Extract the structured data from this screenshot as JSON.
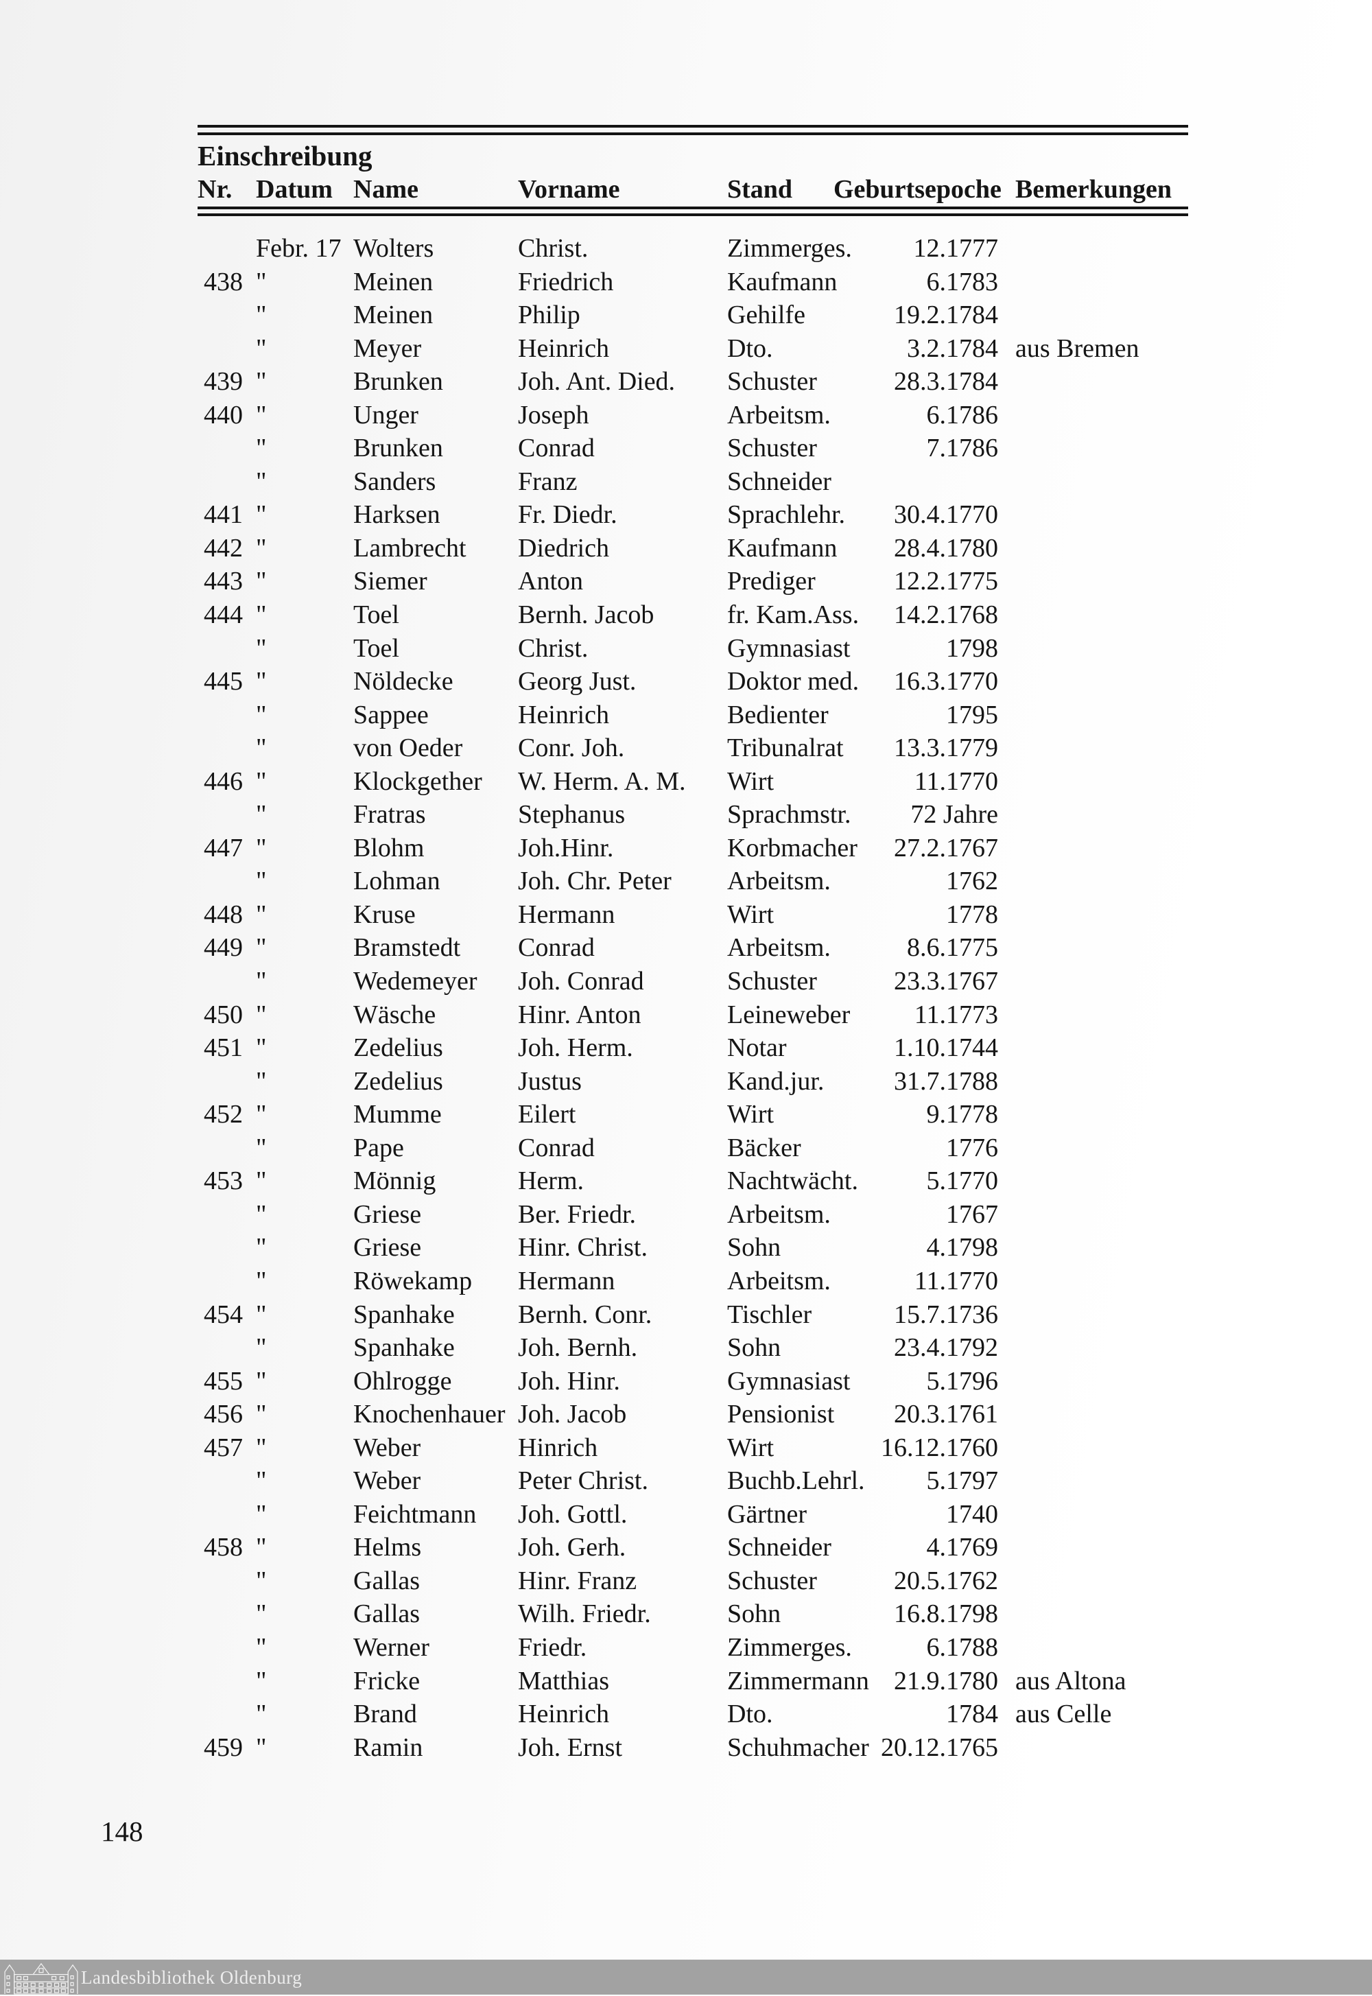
{
  "page": {
    "title": "Einschreibung",
    "page_number": "148",
    "columns": [
      "Nr.",
      "Datum",
      "Name",
      "Vorname",
      "Stand",
      "Geburtsepoche",
      "Bemerkungen"
    ],
    "rows": [
      {
        "nr": "",
        "datum": "Febr. 17",
        "name": "Wolters",
        "vorname": "Christ.",
        "stand": "Zimmerges.",
        "geburtsepoche": "12.1777",
        "bemerkungen": ""
      },
      {
        "nr": "438",
        "datum": "\"",
        "name": "Meinen",
        "vorname": "Friedrich",
        "stand": "Kaufmann",
        "geburtsepoche": "6.1783",
        "bemerkungen": ""
      },
      {
        "nr": "",
        "datum": "\"",
        "name": "Meinen",
        "vorname": "Philip",
        "stand": "Gehilfe",
        "geburtsepoche": "19.2.1784",
        "bemerkungen": ""
      },
      {
        "nr": "",
        "datum": "\"",
        "name": "Meyer",
        "vorname": "Heinrich",
        "stand": "Dto.",
        "geburtsepoche": "3.2.1784",
        "bemerkungen": "aus Bremen"
      },
      {
        "nr": "439",
        "datum": "\"",
        "name": "Brunken",
        "vorname": "Joh. Ant. Died.",
        "stand": "Schuster",
        "geburtsepoche": "28.3.1784",
        "bemerkungen": ""
      },
      {
        "nr": "440",
        "datum": "\"",
        "name": "Unger",
        "vorname": "Joseph",
        "stand": "Arbeitsm.",
        "geburtsepoche": "6.1786",
        "bemerkungen": ""
      },
      {
        "nr": "",
        "datum": "\"",
        "name": "Brunken",
        "vorname": "Conrad",
        "stand": "Schuster",
        "geburtsepoche": "7.1786",
        "bemerkungen": ""
      },
      {
        "nr": "",
        "datum": "\"",
        "name": "Sanders",
        "vorname": "Franz",
        "stand": "Schneider",
        "geburtsepoche": "",
        "bemerkungen": ""
      },
      {
        "nr": "441",
        "datum": "\"",
        "name": "Harksen",
        "vorname": "Fr. Diedr.",
        "stand": "Sprachlehr.",
        "geburtsepoche": "30.4.1770",
        "bemerkungen": ""
      },
      {
        "nr": "442",
        "datum": "\"",
        "name": "Lambrecht",
        "vorname": "Diedrich",
        "stand": "Kaufmann",
        "geburtsepoche": "28.4.1780",
        "bemerkungen": ""
      },
      {
        "nr": "443",
        "datum": "\"",
        "name": "Siemer",
        "vorname": "Anton",
        "stand": "Prediger",
        "geburtsepoche": "12.2.1775",
        "bemerkungen": ""
      },
      {
        "nr": "444",
        "datum": "\"",
        "name": "Toel",
        "vorname": "Bernh. Jacob",
        "stand": "fr. Kam.Ass.",
        "geburtsepoche": "14.2.1768",
        "bemerkungen": ""
      },
      {
        "nr": "",
        "datum": "\"",
        "name": "Toel",
        "vorname": "Christ.",
        "stand": "Gymnasiast",
        "geburtsepoche": "1798",
        "bemerkungen": ""
      },
      {
        "nr": "445",
        "datum": "\"",
        "name": "Nöldecke",
        "vorname": "Georg Just.",
        "stand": "Doktor med.",
        "geburtsepoche": "16.3.1770",
        "bemerkungen": ""
      },
      {
        "nr": "",
        "datum": "\"",
        "name": "Sappee",
        "vorname": "Heinrich",
        "stand": "Bedienter",
        "geburtsepoche": "1795",
        "bemerkungen": ""
      },
      {
        "nr": "",
        "datum": "\"",
        "name": "von Oeder",
        "vorname": "Conr. Joh.",
        "stand": "Tribunalrat",
        "geburtsepoche": "13.3.1779",
        "bemerkungen": ""
      },
      {
        "nr": "446",
        "datum": "\"",
        "name": "Klockgether",
        "vorname": "W. Herm. A. M.",
        "stand": "Wirt",
        "geburtsepoche": "11.1770",
        "bemerkungen": ""
      },
      {
        "nr": "",
        "datum": "\"",
        "name": "Fratras",
        "vorname": "Stephanus",
        "stand": "Sprachmstr.",
        "geburtsepoche": "72 Jahre",
        "bemerkungen": ""
      },
      {
        "nr": "447",
        "datum": "\"",
        "name": "Blohm",
        "vorname": "Joh.Hinr.",
        "stand": "Korbmacher",
        "geburtsepoche": "27.2.1767",
        "bemerkungen": ""
      },
      {
        "nr": "",
        "datum": "\"",
        "name": "Lohman",
        "vorname": "Joh. Chr. Peter",
        "stand": "Arbeitsm.",
        "geburtsepoche": "1762",
        "bemerkungen": ""
      },
      {
        "nr": "448",
        "datum": "\"",
        "name": "Kruse",
        "vorname": "Hermann",
        "stand": "Wirt",
        "geburtsepoche": "1778",
        "bemerkungen": ""
      },
      {
        "nr": "449",
        "datum": "\"",
        "name": "Bramstedt",
        "vorname": "Conrad",
        "stand": "Arbeitsm.",
        "geburtsepoche": "8.6.1775",
        "bemerkungen": ""
      },
      {
        "nr": "",
        "datum": "\"",
        "name": "Wedemeyer",
        "vorname": "Joh. Conrad",
        "stand": "Schuster",
        "geburtsepoche": "23.3.1767",
        "bemerkungen": ""
      },
      {
        "nr": "450",
        "datum": "\"",
        "name": "Wäsche",
        "vorname": "Hinr. Anton",
        "stand": "Leineweber",
        "geburtsepoche": "11.1773",
        "bemerkungen": ""
      },
      {
        "nr": "451",
        "datum": "\"",
        "name": "Zedelius",
        "vorname": "Joh. Herm.",
        "stand": "Notar",
        "geburtsepoche": "1.10.1744",
        "bemerkungen": ""
      },
      {
        "nr": "",
        "datum": "\"",
        "name": "Zedelius",
        "vorname": "Justus",
        "stand": "Kand.jur.",
        "geburtsepoche": "31.7.1788",
        "bemerkungen": ""
      },
      {
        "nr": "452",
        "datum": "\"",
        "name": "Mumme",
        "vorname": "Eilert",
        "stand": "Wirt",
        "geburtsepoche": "9.1778",
        "bemerkungen": ""
      },
      {
        "nr": "",
        "datum": "\"",
        "name": "Pape",
        "vorname": "Conrad",
        "stand": "Bäcker",
        "geburtsepoche": "1776",
        "bemerkungen": ""
      },
      {
        "nr": "453",
        "datum": "\"",
        "name": "Mönnig",
        "vorname": "Herm.",
        "stand": "Nachtwächt.",
        "geburtsepoche": "5.1770",
        "bemerkungen": ""
      },
      {
        "nr": "",
        "datum": "\"",
        "name": "Griese",
        "vorname": "Ber. Friedr.",
        "stand": "Arbeitsm.",
        "geburtsepoche": "1767",
        "bemerkungen": ""
      },
      {
        "nr": "",
        "datum": "\"",
        "name": "Griese",
        "vorname": "Hinr. Christ.",
        "stand": "Sohn",
        "geburtsepoche": "4.1798",
        "bemerkungen": ""
      },
      {
        "nr": "",
        "datum": "\"",
        "name": "Röwekamp",
        "vorname": "Hermann",
        "stand": "Arbeitsm.",
        "geburtsepoche": "11.1770",
        "bemerkungen": ""
      },
      {
        "nr": "454",
        "datum": "\"",
        "name": "Spanhake",
        "vorname": "Bernh. Conr.",
        "stand": "Tischler",
        "geburtsepoche": "15.7.1736",
        "bemerkungen": ""
      },
      {
        "nr": "",
        "datum": "\"",
        "name": "Spanhake",
        "vorname": "Joh. Bernh.",
        "stand": "Sohn",
        "geburtsepoche": "23.4.1792",
        "bemerkungen": ""
      },
      {
        "nr": "455",
        "datum": "\"",
        "name": "Ohlrogge",
        "vorname": "Joh. Hinr.",
        "stand": "Gymnasiast",
        "geburtsepoche": "5.1796",
        "bemerkungen": ""
      },
      {
        "nr": "456",
        "datum": "\"",
        "name": "Knochenhauer",
        "vorname": "Joh. Jacob",
        "stand": "Pensionist",
        "geburtsepoche": "20.3.1761",
        "bemerkungen": ""
      },
      {
        "nr": "457",
        "datum": "\"",
        "name": "Weber",
        "vorname": "Hinrich",
        "stand": "Wirt",
        "geburtsepoche": "16.12.1760",
        "bemerkungen": ""
      },
      {
        "nr": "",
        "datum": "\"",
        "name": "Weber",
        "vorname": "Peter Christ.",
        "stand": "Buchb.Lehrl.",
        "geburtsepoche": "5.1797",
        "bemerkungen": ""
      },
      {
        "nr": "",
        "datum": "\"",
        "name": "Feichtmann",
        "vorname": "Joh. Gottl.",
        "stand": "Gärtner",
        "geburtsepoche": "1740",
        "bemerkungen": ""
      },
      {
        "nr": "458",
        "datum": "\"",
        "name": "Helms",
        "vorname": "Joh. Gerh.",
        "stand": "Schneider",
        "geburtsepoche": "4.1769",
        "bemerkungen": ""
      },
      {
        "nr": "",
        "datum": "\"",
        "name": "Gallas",
        "vorname": "Hinr. Franz",
        "stand": "Schuster",
        "geburtsepoche": "20.5.1762",
        "bemerkungen": ""
      },
      {
        "nr": "",
        "datum": "\"",
        "name": "Gallas",
        "vorname": "Wilh. Friedr.",
        "stand": "Sohn",
        "geburtsepoche": "16.8.1798",
        "bemerkungen": ""
      },
      {
        "nr": "",
        "datum": "\"",
        "name": "Werner",
        "vorname": "Friedr.",
        "stand": "Zimmerges.",
        "geburtsepoche": "6.1788",
        "bemerkungen": ""
      },
      {
        "nr": "",
        "datum": "\"",
        "name": "Fricke",
        "vorname": "Matthias",
        "stand": "Zimmermann",
        "geburtsepoche": "21.9.1780",
        "bemerkungen": "aus Altona"
      },
      {
        "nr": "",
        "datum": "\"",
        "name": "Brand",
        "vorname": "Heinrich",
        "stand": "Dto.",
        "geburtsepoche": "1784",
        "bemerkungen": "aus Celle"
      },
      {
        "nr": "459",
        "datum": "\"",
        "name": "Ramin",
        "vorname": "Joh. Ernst",
        "stand": "Schuhmacher",
        "geburtsepoche": "20.12.1765",
        "bemerkungen": ""
      }
    ],
    "footer": {
      "library": "Landesbibliothek Oldenburg",
      "bar_color": "#a2a2a2"
    }
  }
}
